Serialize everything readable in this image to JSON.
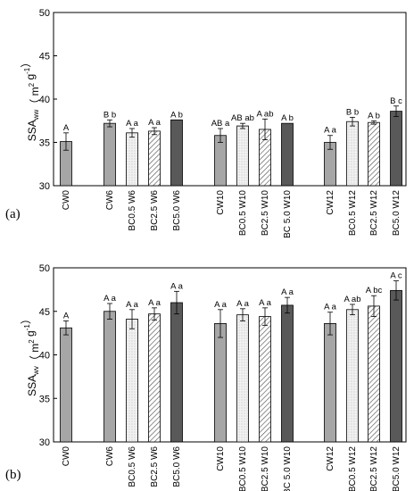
{
  "chart_data": [
    {
      "type": "bar",
      "panel_label": "(a)",
      "ylabel": {
        "main": "SSA",
        "sub": "ww",
        "units_pre": "（ m",
        "units_sup1": "2",
        "units_mid": " g",
        "units_sup2": "-1",
        "units_post": "）"
      },
      "ylim": [
        30,
        50
      ],
      "yticks": [
        "30",
        "35",
        "40",
        "45",
        "50"
      ],
      "groups": [
        [
          {
            "label": "CW0",
            "value": 35.1,
            "error": 1.0,
            "sig": "A",
            "fill": "gray"
          }
        ],
        [
          {
            "label": "CW6",
            "value": 37.2,
            "error": 0.4,
            "sig": "B b",
            "fill": "gray"
          },
          {
            "label": "BC0.5 W6",
            "value": 36.1,
            "error": 0.5,
            "sig": "A a",
            "fill": "dotted"
          },
          {
            "label": "BC2.5 W6",
            "value": 36.3,
            "error": 0.4,
            "sig": "A a",
            "fill": "hatched"
          },
          {
            "label": "BC5.0 W6",
            "value": 37.6,
            "error": 0.0,
            "sig": "A b",
            "fill": "dark"
          }
        ],
        [
          {
            "label": "CW10",
            "value": 35.8,
            "error": 0.8,
            "sig": "AB a",
            "fill": "gray"
          },
          {
            "label": "BC0.5 W10",
            "value": 36.9,
            "error": 0.3,
            "sig": "AB ab",
            "fill": "dotted"
          },
          {
            "label": "BC2.5 W10",
            "value": 36.5,
            "error": 1.2,
            "sig": "A ab",
            "fill": "hatched"
          },
          {
            "label": "BC 5.0 W10",
            "value": 37.2,
            "error": 0.0,
            "sig": "A b",
            "fill": "dark"
          }
        ],
        [
          {
            "label": "CW12",
            "value": 35.0,
            "error": 0.8,
            "sig": "A a",
            "fill": "gray"
          },
          {
            "label": "BC0.5 W12",
            "value": 37.4,
            "error": 0.5,
            "sig": "B b",
            "fill": "dotted"
          },
          {
            "label": "BC2.5 W12",
            "value": 37.3,
            "error": 0.2,
            "sig": "A b",
            "fill": "hatched"
          },
          {
            "label": "BC5.0 W12",
            "value": 38.6,
            "error": 0.6,
            "sig": "B c",
            "fill": "dark"
          }
        ]
      ]
    },
    {
      "type": "bar",
      "panel_label": "(b)",
      "ylabel": {
        "main": "SSA",
        "sub": "wv",
        "units_pre": "（ m",
        "units_sup1": "2",
        "units_mid": " g",
        "units_sup2": "-1",
        "units_post": "）"
      },
      "ylim": [
        30,
        50
      ],
      "yticks": [
        "30",
        "35",
        "40",
        "45",
        "50"
      ],
      "groups": [
        [
          {
            "label": "CW0",
            "value": 43.1,
            "error": 0.8,
            "sig": "A",
            "fill": "gray"
          }
        ],
        [
          {
            "label": "CW6",
            "value": 45.0,
            "error": 0.9,
            "sig": "A a",
            "fill": "gray"
          },
          {
            "label": "BC0.5 W6",
            "value": 44.1,
            "error": 1.1,
            "sig": "A a",
            "fill": "dotted"
          },
          {
            "label": "BC2.5 W6",
            "value": 44.7,
            "error": 0.7,
            "sig": "A a",
            "fill": "hatched"
          },
          {
            "label": "BC5.0 W6",
            "value": 46.0,
            "error": 1.3,
            "sig": "A a",
            "fill": "dark"
          }
        ],
        [
          {
            "label": "CW10",
            "value": 43.6,
            "error": 1.6,
            "sig": "A a",
            "fill": "gray"
          },
          {
            "label": "BC0.5 W10",
            "value": 44.6,
            "error": 0.7,
            "sig": "A a",
            "fill": "dotted"
          },
          {
            "label": "BC2.5 W10",
            "value": 44.4,
            "error": 1.0,
            "sig": "A a",
            "fill": "hatched"
          },
          {
            "label": "BC 5.0 W10",
            "value": 45.7,
            "error": 0.9,
            "sig": "A a",
            "fill": "dark"
          }
        ],
        [
          {
            "label": "CW12",
            "value": 43.6,
            "error": 1.3,
            "sig": "A a",
            "fill": "gray"
          },
          {
            "label": "BC0.5 W12",
            "value": 45.2,
            "error": 0.6,
            "sig": "A ab",
            "fill": "dotted"
          },
          {
            "label": "BC2.5 W12",
            "value": 45.6,
            "error": 1.2,
            "sig": "A bc",
            "fill": "hatched"
          },
          {
            "label": "BC5.0 W12",
            "value": 47.4,
            "error": 1.1,
            "sig": "A c",
            "fill": "dark"
          }
        ]
      ]
    }
  ]
}
